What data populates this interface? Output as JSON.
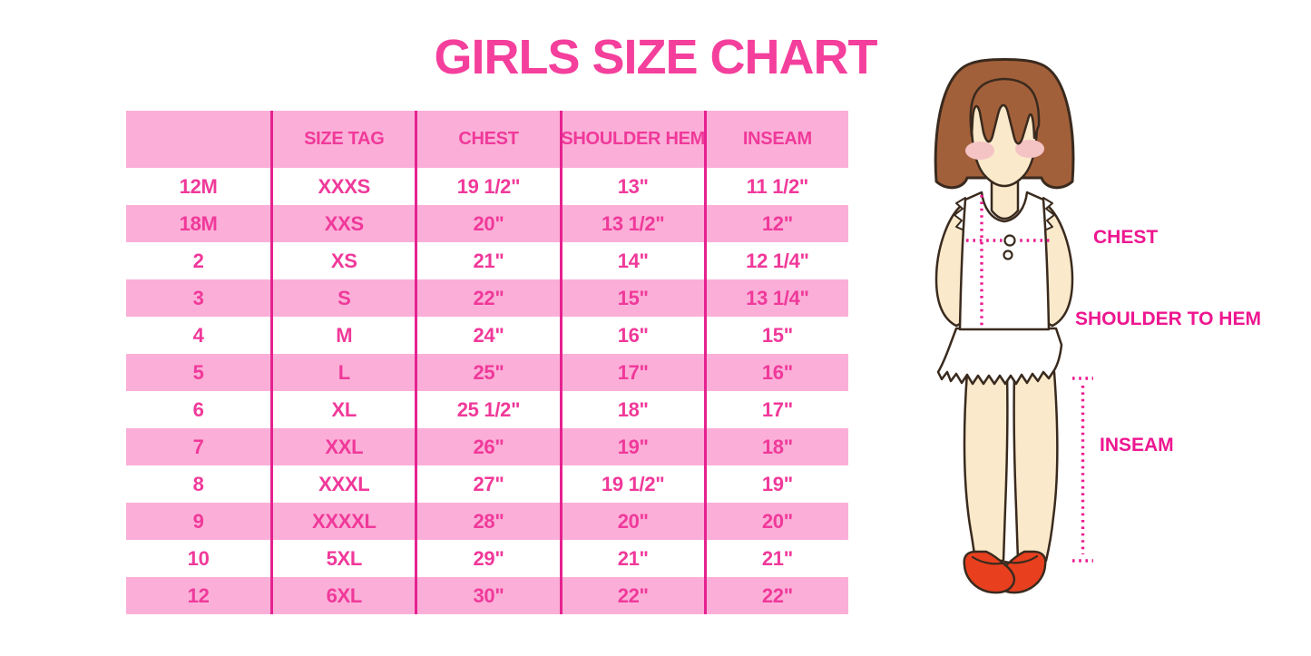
{
  "title": "GIRLS SIZE CHART",
  "chart_data": {
    "type": "table",
    "title": "GIRLS SIZE CHART",
    "columns": [
      "",
      "SIZE TAG",
      "CHEST",
      "SHOULDER HEM",
      "INSEAM"
    ],
    "rows": [
      [
        "12M",
        "XXXS",
        "19 1/2\"",
        "13\"",
        "11 1/2\""
      ],
      [
        "18M",
        "XXS",
        "20\"",
        "13 1/2\"",
        "12\""
      ],
      [
        "2",
        "XS",
        "21\"",
        "14\"",
        "12 1/4\""
      ],
      [
        "3",
        "S",
        "22\"",
        "15\"",
        "13 1/4\""
      ],
      [
        "4",
        "M",
        "24\"",
        "16\"",
        "15\""
      ],
      [
        "5",
        "L",
        "25\"",
        "17\"",
        "16\""
      ],
      [
        "6",
        "XL",
        "25 1/2\"",
        "18\"",
        "17\""
      ],
      [
        "7",
        "XXL",
        "26\"",
        "19\"",
        "18\""
      ],
      [
        "8",
        "XXXL",
        "27\"",
        "19 1/2\"",
        "19\""
      ],
      [
        "9",
        "XXXXL",
        "28\"",
        "20\"",
        "20\""
      ],
      [
        "10",
        "5XL",
        "29\"",
        "21\"",
        "21\""
      ],
      [
        "12",
        "6XL",
        "30\"",
        "22\"",
        "22\""
      ]
    ],
    "row_striping": "white/pink alternating, header pink",
    "legend_position": "none",
    "grid": "vertical dividers only"
  },
  "figure_labels": {
    "chest": "CHEST",
    "shoulder_to_hem": "SHOULDER TO HEM",
    "inseam": "INSEAM"
  },
  "colors": {
    "background": "#FFFFFF",
    "title_pink": "#F43F9C",
    "row_pink": "#FBAFD8",
    "divider_pink": "#E52290",
    "cell_text_pink": "#F0399A",
    "label_magenta": "#EE1690",
    "dotted_pink": "#EC1C90",
    "hair_brown": "#A2603A",
    "skin": "#FAEACB",
    "blush": "#F4C3C4",
    "shirt_white": "#FFFFFF",
    "shoe_red": "#E8401F",
    "outline_dark": "#3A2A1E"
  }
}
